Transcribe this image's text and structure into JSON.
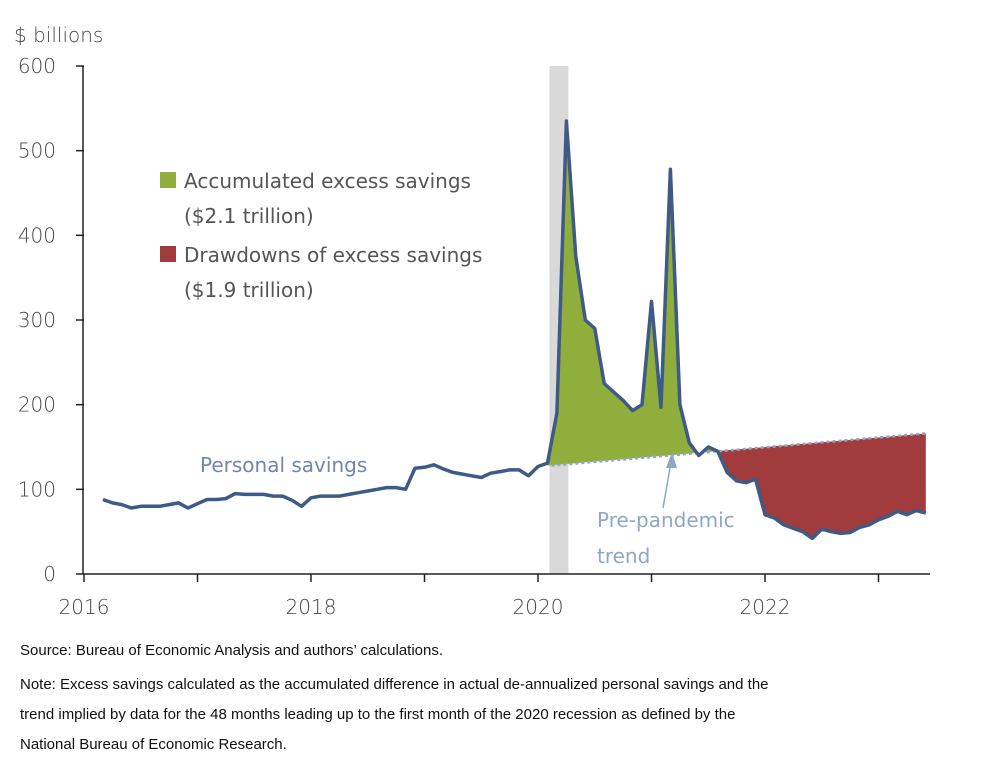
{
  "chart_data": {
    "type": "area",
    "ylabel": "$ billions",
    "ylim": [
      0,
      600
    ],
    "yticks": [
      0,
      100,
      200,
      300,
      400,
      500,
      600
    ],
    "xticks": [
      "2016",
      "2018",
      "2020",
      "2022"
    ],
    "xlim": [
      "2016-01",
      "2023-06"
    ],
    "grid": false,
    "recession_shading": {
      "start": "2020-02",
      "end": "2020-04"
    },
    "series": [
      {
        "name": "Personal savings",
        "start": "2016-03",
        "frequency": "monthly",
        "values": [
          88,
          84,
          82,
          78,
          80,
          80,
          80,
          82,
          84,
          78,
          83,
          88,
          88,
          89,
          95,
          94,
          94,
          94,
          92,
          92,
          87,
          80,
          90,
          92,
          92,
          92,
          94,
          96,
          98,
          100,
          102,
          102,
          100,
          125,
          126,
          129,
          124,
          120,
          118,
          116,
          114,
          119,
          121,
          123,
          123,
          116,
          127,
          131,
          190,
          535,
          375,
          300,
          290,
          225,
          215,
          205,
          193,
          200,
          322,
          197,
          478,
          200,
          155,
          140,
          150,
          145,
          120,
          110,
          108,
          112,
          70,
          66,
          58,
          54,
          50,
          42,
          53,
          50,
          48,
          49,
          55,
          58,
          64,
          68,
          74,
          70,
          75,
          72
        ]
      },
      {
        "name": "Pre-pandemic trend",
        "points": [
          {
            "date": "2020-02",
            "value": 128
          },
          {
            "date": "2023-06",
            "value": 166
          }
        ]
      }
    ],
    "legend": [
      {
        "label": "Accumulated excess savings",
        "sub": "($2.1 trillion)",
        "color": "#8fae3c"
      },
      {
        "label": "Drawdowns of excess savings",
        "sub": "($1.9 trillion)",
        "color": "#a23b3b"
      }
    ],
    "annotations": {
      "series_label": "Personal savings",
      "trend_label_1": "Pre-pandemic",
      "trend_label_2": "trend"
    },
    "colors": {
      "line": "#3f5a86",
      "trend": "#8fa7c7",
      "recession": "#d9d9d9",
      "label": "#6f86b0"
    }
  },
  "notes": {
    "source": "Source: Bureau of Economic Analysis and authors’ calculations.",
    "note_1": "Note: Excess savings calculated as the accumulated difference in actual de-annualized personal savings and the",
    "note_2": "trend implied by data for the 48 months leading up to the first month of the 2020 recession as defined by the",
    "note_3": "National Bureau of Economic Research."
  }
}
